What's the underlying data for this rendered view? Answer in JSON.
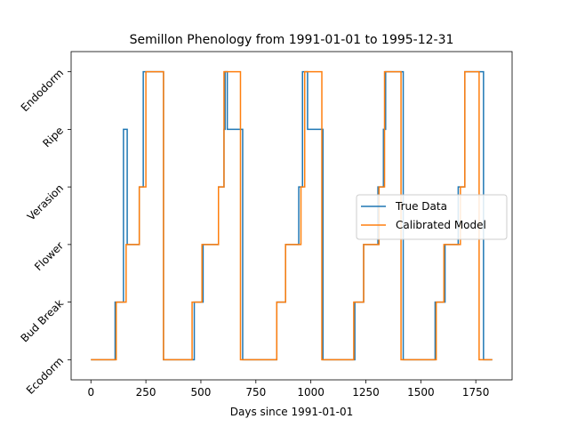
{
  "chart_data": {
    "type": "line",
    "title": "Semillon Phenology from 1991-01-01 to 1995-12-31",
    "xlabel": "Days since 1991-01-01",
    "ylabel": "",
    "xlim": [
      -90,
      1915
    ],
    "ylim": [
      -0.35,
      5.35
    ],
    "x_ticks": [
      0,
      250,
      500,
      750,
      1000,
      1250,
      1500,
      1750
    ],
    "y_ticks": [
      0,
      1,
      2,
      3,
      4,
      5
    ],
    "y_tick_labels": [
      "Ecodorm",
      "Bud Break",
      "Flower",
      "Verasion",
      "Ripe",
      "Endodorm"
    ],
    "grid": false,
    "legend_position": "center-right",
    "series": [
      {
        "name": "True Data",
        "color": "#1f77b4",
        "points": [
          [
            0,
            0
          ],
          [
            110,
            0
          ],
          [
            110,
            1
          ],
          [
            148,
            1
          ],
          [
            148,
            4
          ],
          [
            165,
            4
          ],
          [
            165,
            2
          ],
          [
            220,
            2
          ],
          [
            220,
            3
          ],
          [
            238,
            3
          ],
          [
            238,
            4
          ],
          [
            238,
            5
          ],
          [
            320,
            5
          ],
          [
            320,
            5
          ],
          [
            330,
            5
          ],
          [
            330,
            0
          ],
          [
            470,
            0
          ],
          [
            470,
            1
          ],
          [
            510,
            1
          ],
          [
            510,
            2
          ],
          [
            580,
            2
          ],
          [
            580,
            3
          ],
          [
            605,
            3
          ],
          [
            605,
            4
          ],
          [
            610,
            4
          ],
          [
            610,
            5
          ],
          [
            620,
            5
          ],
          [
            620,
            4
          ],
          [
            690,
            4
          ],
          [
            690,
            0
          ],
          [
            845,
            0
          ],
          [
            845,
            1
          ],
          [
            885,
            1
          ],
          [
            885,
            2
          ],
          [
            945,
            2
          ],
          [
            945,
            3
          ],
          [
            962,
            3
          ],
          [
            962,
            5
          ],
          [
            985,
            5
          ],
          [
            985,
            4
          ],
          [
            1055,
            4
          ],
          [
            1055,
            0
          ],
          [
            1200,
            0
          ],
          [
            1200,
            1
          ],
          [
            1240,
            1
          ],
          [
            1240,
            2
          ],
          [
            1305,
            2
          ],
          [
            1305,
            3
          ],
          [
            1330,
            3
          ],
          [
            1330,
            4
          ],
          [
            1340,
            4
          ],
          [
            1340,
            5
          ],
          [
            1420,
            5
          ],
          [
            1420,
            0
          ],
          [
            1565,
            0
          ],
          [
            1565,
            1
          ],
          [
            1610,
            1
          ],
          [
            1610,
            2
          ],
          [
            1670,
            2
          ],
          [
            1670,
            3
          ],
          [
            1700,
            3
          ],
          [
            1700,
            5
          ],
          [
            1780,
            5
          ],
          [
            1780,
            5
          ],
          [
            1785,
            5
          ],
          [
            1785,
            0
          ],
          [
            1825,
            0
          ]
        ]
      },
      {
        "name": "Calibrated Model",
        "color": "#ff7f0e",
        "points": [
          [
            0,
            0
          ],
          [
            115,
            0
          ],
          [
            115,
            1
          ],
          [
            160,
            1
          ],
          [
            160,
            2
          ],
          [
            220,
            2
          ],
          [
            220,
            3
          ],
          [
            250,
            3
          ],
          [
            250,
            5
          ],
          [
            330,
            5
          ],
          [
            330,
            0
          ],
          [
            460,
            0
          ],
          [
            460,
            1
          ],
          [
            505,
            1
          ],
          [
            505,
            2
          ],
          [
            580,
            2
          ],
          [
            580,
            3
          ],
          [
            605,
            3
          ],
          [
            605,
            5
          ],
          [
            680,
            5
          ],
          [
            680,
            0
          ],
          [
            845,
            0
          ],
          [
            845,
            1
          ],
          [
            885,
            1
          ],
          [
            885,
            2
          ],
          [
            955,
            2
          ],
          [
            955,
            3
          ],
          [
            972,
            3
          ],
          [
            972,
            5
          ],
          [
            1050,
            5
          ],
          [
            1050,
            0
          ],
          [
            1195,
            0
          ],
          [
            1195,
            1
          ],
          [
            1240,
            1
          ],
          [
            1240,
            2
          ],
          [
            1310,
            2
          ],
          [
            1310,
            3
          ],
          [
            1335,
            3
          ],
          [
            1335,
            5
          ],
          [
            1410,
            5
          ],
          [
            1410,
            0
          ],
          [
            1570,
            0
          ],
          [
            1570,
            1
          ],
          [
            1605,
            1
          ],
          [
            1605,
            2
          ],
          [
            1680,
            2
          ],
          [
            1680,
            3
          ],
          [
            1700,
            3
          ],
          [
            1700,
            5
          ],
          [
            1765,
            5
          ],
          [
            1765,
            0
          ],
          [
            1825,
            0
          ]
        ]
      }
    ]
  }
}
